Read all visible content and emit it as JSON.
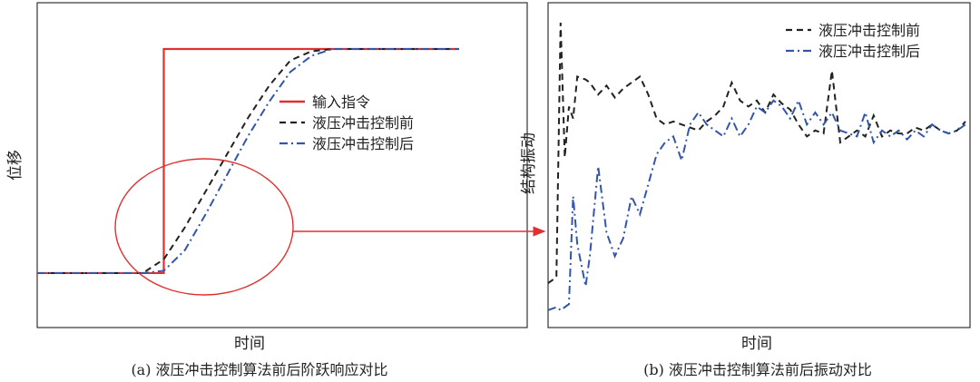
{
  "chart_data": [
    {
      "type": "line",
      "caption": "(a) 液压冲击控制算法前后阶跃响应对比",
      "xlabel": "时间",
      "ylabel": "位移",
      "legend_position": "center-right",
      "xlim": [
        0,
        1
      ],
      "ylim": [
        0,
        1
      ],
      "x": [
        0,
        0.05,
        0.1,
        0.15,
        0.2,
        0.25,
        0.3,
        0.35,
        0.4,
        0.45,
        0.5,
        0.55,
        0.6,
        0.65,
        0.7,
        0.75,
        0.8,
        0.85,
        0.9,
        0.95,
        1.0
      ],
      "series": [
        {
          "name": "输入指令",
          "color": "#e03030",
          "dash": "solid",
          "values": [
            0.02,
            0.02,
            0.02,
            0.02,
            0.02,
            0.02,
            1.0,
            1.0,
            1.0,
            1.0,
            1.0,
            1.0,
            1.0,
            1.0,
            1.0,
            1.0,
            1.0,
            1.0,
            1.0,
            1.0,
            1.0
          ]
        },
        {
          "name": "液压冲击控制前",
          "color": "#222222",
          "dash": "dash",
          "values": [
            0.02,
            0.02,
            0.02,
            0.02,
            0.02,
            0.02,
            0.08,
            0.22,
            0.38,
            0.54,
            0.7,
            0.84,
            0.95,
            0.99,
            1.0,
            1.0,
            1.0,
            1.0,
            1.0,
            1.0,
            1.0
          ]
        },
        {
          "name": "液压冲击控制后",
          "color": "#3355aa",
          "dash": "dashdot",
          "values": [
            0.02,
            0.02,
            0.02,
            0.02,
            0.02,
            0.02,
            0.03,
            0.12,
            0.28,
            0.45,
            0.62,
            0.77,
            0.9,
            0.97,
            1.0,
            1.0,
            1.0,
            1.0,
            1.0,
            1.0,
            1.0
          ]
        }
      ],
      "annotation": "red ellipse around step onset with arrow to panel (b)"
    },
    {
      "type": "line",
      "caption": "(b) 液压冲击控制算法前后振动对比",
      "xlabel": "时间",
      "ylabel": "结构振动",
      "legend_position": "top-right",
      "xlim": [
        0,
        1
      ],
      "ylim": [
        0,
        1
      ],
      "x": [
        0.0,
        0.02,
        0.03,
        0.04,
        0.05,
        0.06,
        0.07,
        0.09,
        0.1,
        0.12,
        0.14,
        0.16,
        0.18,
        0.2,
        0.22,
        0.24,
        0.26,
        0.28,
        0.3,
        0.32,
        0.34,
        0.36,
        0.38,
        0.4,
        0.42,
        0.44,
        0.46,
        0.48,
        0.5,
        0.52,
        0.54,
        0.56,
        0.58,
        0.6,
        0.62,
        0.64,
        0.66,
        0.68,
        0.7,
        0.72,
        0.74,
        0.76,
        0.78,
        0.8,
        0.82,
        0.84,
        0.86,
        0.88,
        0.9,
        0.92,
        0.94,
        0.96,
        0.98,
        1.0
      ],
      "series": [
        {
          "name": "液压冲击控制前",
          "color": "#222222",
          "dash": "dash",
          "values": [
            0.13,
            0.15,
            1.0,
            0.55,
            0.72,
            0.68,
            0.82,
            0.81,
            0.8,
            0.76,
            0.79,
            0.75,
            0.78,
            0.8,
            0.82,
            0.76,
            0.68,
            0.66,
            0.67,
            0.66,
            0.65,
            0.64,
            0.67,
            0.69,
            0.72,
            0.8,
            0.74,
            0.72,
            0.74,
            0.7,
            0.76,
            0.73,
            0.71,
            0.66,
            0.62,
            0.64,
            0.63,
            0.84,
            0.6,
            0.62,
            0.64,
            0.62,
            0.69,
            0.62,
            0.64,
            0.63,
            0.63,
            0.65,
            0.64,
            0.66,
            0.64,
            0.63,
            0.64,
            0.67
          ]
        },
        {
          "name": "液压冲击控制后",
          "color": "#3355aa",
          "dash": "dashdot",
          "values": [
            0.04,
            0.05,
            0.04,
            0.05,
            0.06,
            0.42,
            0.26,
            0.12,
            0.22,
            0.52,
            0.3,
            0.22,
            0.28,
            0.42,
            0.36,
            0.46,
            0.56,
            0.6,
            0.62,
            0.54,
            0.66,
            0.7,
            0.66,
            0.64,
            0.62,
            0.68,
            0.62,
            0.66,
            0.72,
            0.7,
            0.74,
            0.72,
            0.68,
            0.74,
            0.66,
            0.7,
            0.66,
            0.7,
            0.64,
            0.63,
            0.62,
            0.7,
            0.6,
            0.64,
            0.62,
            0.64,
            0.61,
            0.64,
            0.62,
            0.66,
            0.64,
            0.63,
            0.64,
            0.66
          ]
        }
      ]
    }
  ]
}
